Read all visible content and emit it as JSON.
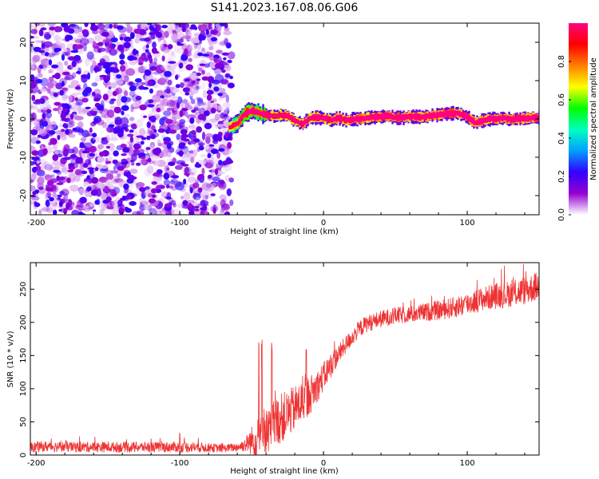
{
  "figure": {
    "title": "S141.2023.167.08.06.G06"
  },
  "chart_data": [
    {
      "type": "heatmap",
      "title": "S141.2023.167.08.06.G06",
      "xlabel": "Height of straight line (km)",
      "ylabel": "Frequency (Hz)",
      "xlim": [
        -204,
        150
      ],
      "ylim": [
        -25,
        25
      ],
      "xticks": [
        -200,
        -100,
        0,
        100
      ],
      "xtick_labels": [
        "-200",
        "-100",
        "0",
        "100"
      ],
      "yticks": [
        -20,
        -10,
        0,
        10,
        20
      ],
      "ytick_labels": [
        "-20",
        "-10",
        "0",
        "10",
        "20"
      ],
      "noise_region_x": [
        -204,
        -64
      ],
      "signal_start_x": -68,
      "signal_track": {
        "x": [
          -66,
          -60,
          -55,
          -50,
          -45,
          -40,
          -35,
          -30,
          -25,
          -20,
          -15,
          -10,
          -5,
          0,
          5,
          10,
          15,
          20,
          25,
          30,
          35,
          40,
          45,
          50,
          55,
          60,
          65,
          70,
          75,
          80,
          85,
          90,
          95,
          100,
          105,
          110,
          115,
          120,
          125,
          130,
          135,
          140,
          145,
          150
        ],
        "freq": [
          -2.2,
          -1.0,
          1.5,
          2.2,
          1.5,
          1.0,
          0.7,
          1.0,
          0.8,
          -0.6,
          -1.3,
          0.2,
          0.4,
          0.2,
          -0.3,
          0.3,
          -0.4,
          -0.1,
          0.1,
          0.3,
          0.5,
          0.6,
          0.8,
          0.3,
          0.4,
          0.6,
          0.5,
          0.6,
          0.9,
          1.1,
          1.4,
          1.5,
          1.3,
          0.4,
          -1.0,
          -0.5,
          0.0,
          0.0,
          0.3,
          -0.2,
          0.1,
          0.1,
          0.3,
          0.2
        ],
        "amplitude": [
          0.3,
          0.45,
          0.55,
          0.5,
          0.5,
          0.65,
          0.7,
          0.7,
          0.75,
          0.7,
          0.75,
          0.8,
          0.85,
          0.8,
          0.8,
          0.85,
          0.8,
          0.85,
          0.85,
          0.85,
          0.9,
          0.9,
          0.9,
          0.9,
          0.9,
          0.9,
          0.9,
          0.9,
          0.9,
          0.9,
          0.95,
          0.95,
          0.9,
          0.85,
          0.85,
          0.9,
          0.9,
          0.9,
          0.9,
          0.9,
          0.85,
          0.9,
          0.85,
          0.85
        ]
      },
      "colorbar": {
        "label": "Normalized spectral amplitude",
        "range": [
          0,
          1
        ],
        "ticks": [
          0.0,
          0.2,
          0.4,
          0.6,
          0.8
        ],
        "tick_labels": [
          "0.0",
          "0.2",
          "0.4",
          "0.6",
          "0.8"
        ],
        "colormap": [
          "#ffffff",
          "#9400d3",
          "#3300ff",
          "#00a0ff",
          "#00ffc0",
          "#00ff00",
          "#ffff00",
          "#ff8000",
          "#ff0000",
          "#ff0080"
        ]
      }
    },
    {
      "type": "line",
      "xlabel": "Height of straight line (km)",
      "ylabel": "SNR (10 * v/v)",
      "xlim": [
        -204,
        150
      ],
      "ylim": [
        0,
        290
      ],
      "xticks": [
        -200,
        -100,
        0,
        100
      ],
      "xtick_labels": [
        "-200",
        "-100",
        "0",
        "100"
      ],
      "yticks": [
        0,
        50,
        100,
        150,
        200,
        250
      ],
      "ytick_labels": [
        "0",
        "50",
        "100",
        "150",
        "200",
        "250"
      ],
      "color": "#ee3333",
      "series": [
        {
          "name": "SNR",
          "x": [
            -204,
            -190,
            -170,
            -150,
            -130,
            -110,
            -100,
            -90,
            -80,
            -70,
            -60,
            -55,
            -50,
            -45,
            -40,
            -35,
            -30,
            -25,
            -20,
            -15,
            -10,
            -5,
            0,
            5,
            10,
            15,
            20,
            25,
            30,
            40,
            50,
            60,
            70,
            80,
            90,
            100,
            110,
            120,
            130,
            140,
            150
          ],
          "y": [
            12,
            13,
            12,
            12,
            12,
            12,
            12,
            12,
            11,
            10,
            12,
            15,
            22,
            25,
            35,
            45,
            55,
            62,
            70,
            80,
            90,
            102,
            118,
            135,
            150,
            165,
            178,
            190,
            198,
            205,
            210,
            212,
            215,
            218,
            222,
            228,
            235,
            240,
            243,
            248,
            255
          ],
          "noise": [
            8,
            8,
            8,
            8,
            8,
            8,
            8,
            8,
            7,
            6,
            7,
            10,
            22,
            30,
            35,
            38,
            38,
            36,
            35,
            33,
            30,
            25,
            22,
            20,
            15,
            14,
            13,
            13,
            13,
            13,
            13,
            13,
            14,
            15,
            16,
            18,
            18,
            20,
            20,
            22,
            22
          ]
        }
      ],
      "spikes": [
        {
          "x": -100,
          "y": 35
        },
        {
          "x": -45,
          "y": 180
        },
        {
          "x": -43,
          "y": 175
        },
        {
          "x": -36,
          "y": 170
        },
        {
          "x": -12,
          "y": 165
        }
      ]
    }
  ]
}
